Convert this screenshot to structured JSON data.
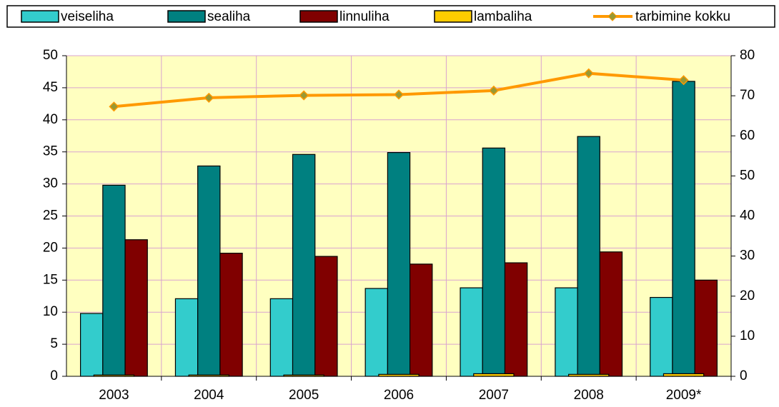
{
  "chart_data": {
    "type": "bar",
    "categories": [
      "2003",
      "2004",
      "2005",
      "2006",
      "2007",
      "2008",
      "2009*"
    ],
    "series": [
      {
        "name": "veiseliha",
        "color": "#33CCCC",
        "values": [
          9.8,
          12.1,
          12.1,
          13.7,
          13.8,
          13.8,
          12.3
        ]
      },
      {
        "name": "sealiha",
        "color": "#008080",
        "values": [
          29.8,
          32.8,
          34.6,
          34.9,
          35.6,
          37.4,
          46.0
        ]
      },
      {
        "name": "linnuliha",
        "color": "#800000",
        "values": [
          21.3,
          19.2,
          18.7,
          17.5,
          17.7,
          19.4,
          15.0
        ]
      },
      {
        "name": "lambaliha",
        "color": "#FFCC00",
        "values": [
          0.2,
          0.2,
          0.2,
          0.3,
          0.4,
          0.3,
          0.4
        ]
      },
      {
        "name": "tarbimine kokku",
        "color": "#FF9900",
        "marker_color": "#999933",
        "type": "line",
        "axis": "y2",
        "values": [
          67.3,
          69.5,
          70.1,
          70.3,
          71.3,
          75.6,
          73.9
        ]
      }
    ],
    "ylim": [
      0,
      50
    ],
    "yticks": [
      0,
      5,
      10,
      15,
      20,
      25,
      30,
      35,
      40,
      45,
      50
    ],
    "y2lim": [
      0,
      80
    ],
    "y2ticks": [
      0,
      10,
      20,
      30,
      40,
      50,
      60,
      70,
      80
    ],
    "grid": true,
    "legend": "top",
    "background": "#FFFFC0"
  }
}
